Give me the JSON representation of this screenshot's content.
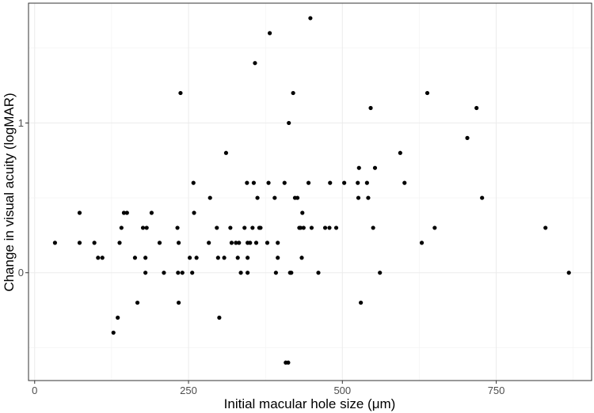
{
  "chart_data": {
    "type": "scatter",
    "title": "",
    "xlabel": "Initial macular hole size (μm)",
    "ylabel": "Change in visual acuity (logMAR)",
    "xlim": [
      -10,
      905
    ],
    "ylim": [
      -0.72,
      1.8
    ],
    "xticks": [
      0,
      250,
      500,
      750
    ],
    "yticks": [
      0,
      1
    ],
    "x_minor_grid": [
      125,
      375,
      625,
      875
    ],
    "y_minor_grid": [
      -0.5,
      0.5,
      1.5
    ],
    "grid": true,
    "point_color": "#000000",
    "points": [
      [
        33,
        0.2
      ],
      [
        73,
        0.4
      ],
      [
        73,
        0.2
      ],
      [
        97,
        0.2
      ],
      [
        103,
        0.1
      ],
      [
        110,
        0.1
      ],
      [
        128,
        -0.4
      ],
      [
        135,
        -0.3
      ],
      [
        138,
        0.2
      ],
      [
        141,
        0.3
      ],
      [
        145,
        0.4
      ],
      [
        150,
        0.4
      ],
      [
        163,
        0.1
      ],
      [
        167,
        -0.2
      ],
      [
        176,
        0.3
      ],
      [
        180,
        0.1
      ],
      [
        180,
        0.0
      ],
      [
        182,
        0.3
      ],
      [
        190,
        0.4
      ],
      [
        203,
        0.2
      ],
      [
        210,
        0.0
      ],
      [
        232,
        0.3
      ],
      [
        234,
        0.2
      ],
      [
        233,
        0.0
      ],
      [
        234,
        -0.2
      ],
      [
        237,
        1.2
      ],
      [
        240,
        0.0
      ],
      [
        252,
        0.1
      ],
      [
        256,
        0.0
      ],
      [
        259,
        0.4
      ],
      [
        258,
        0.6
      ],
      [
        263,
        0.1
      ],
      [
        283,
        0.2
      ],
      [
        285,
        0.5
      ],
      [
        296,
        0.3
      ],
      [
        298,
        0.1
      ],
      [
        300,
        -0.3
      ],
      [
        308,
        0.1
      ],
      [
        311,
        0.8
      ],
      [
        318,
        0.3
      ],
      [
        320,
        0.2
      ],
      [
        327,
        0.2
      ],
      [
        330,
        0.1
      ],
      [
        332,
        0.2
      ],
      [
        335,
        0.0
      ],
      [
        341,
        0.3
      ],
      [
        345,
        0.6
      ],
      [
        346,
        0.2
      ],
      [
        346,
        0.1
      ],
      [
        346,
        0.0
      ],
      [
        350,
        0.2
      ],
      [
        354,
        0.3
      ],
      [
        356,
        0.6
      ],
      [
        358,
        1.4
      ],
      [
        360,
        0.2
      ],
      [
        362,
        0.5
      ],
      [
        365,
        0.3
      ],
      [
        367,
        0.3
      ],
      [
        378,
        0.2
      ],
      [
        380,
        0.6
      ],
      [
        382,
        1.6
      ],
      [
        390,
        0.5
      ],
      [
        392,
        0.0
      ],
      [
        395,
        0.2
      ],
      [
        395,
        0.1
      ],
      [
        406,
        0.6
      ],
      [
        408,
        -0.6
      ],
      [
        412,
        -0.6
      ],
      [
        413,
        1.0
      ],
      [
        415,
        0.0
      ],
      [
        417,
        0.0
      ],
      [
        420,
        1.2
      ],
      [
        423,
        0.5
      ],
      [
        427,
        0.5
      ],
      [
        430,
        0.3
      ],
      [
        432,
        0.3
      ],
      [
        434,
        0.1
      ],
      [
        435,
        0.4
      ],
      [
        437,
        0.3
      ],
      [
        445,
        0.6
      ],
      [
        448,
        1.7
      ],
      [
        450,
        0.3
      ],
      [
        461,
        0.0
      ],
      [
        472,
        0.3
      ],
      [
        479,
        0.3
      ],
      [
        480,
        0.6
      ],
      [
        490,
        0.3
      ],
      [
        503,
        0.6
      ],
      [
        525,
        0.6
      ],
      [
        527,
        0.7
      ],
      [
        526,
        0.5
      ],
      [
        530,
        -0.2
      ],
      [
        540,
        0.6
      ],
      [
        542,
        0.5
      ],
      [
        546,
        1.1
      ],
      [
        550,
        0.3
      ],
      [
        553,
        0.7
      ],
      [
        561,
        0.0
      ],
      [
        594,
        0.8
      ],
      [
        601,
        0.6
      ],
      [
        629,
        0.2
      ],
      [
        638,
        1.2
      ],
      [
        650,
        0.3
      ],
      [
        703,
        0.9
      ],
      [
        718,
        1.1
      ],
      [
        727,
        0.5
      ],
      [
        830,
        0.3
      ],
      [
        868,
        0.0
      ]
    ]
  }
}
